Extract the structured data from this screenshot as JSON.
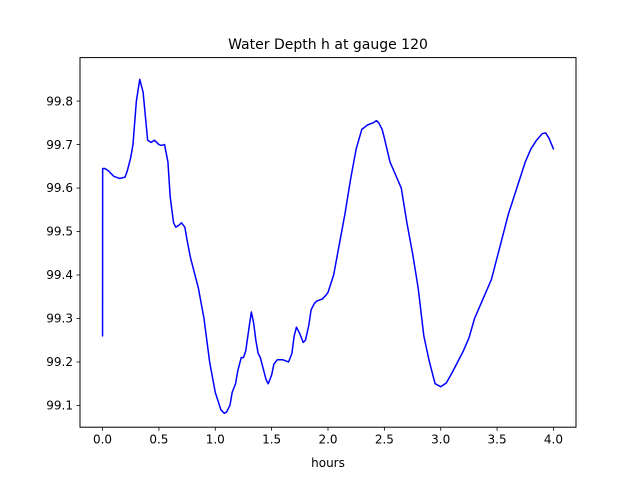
{
  "chart_data": {
    "type": "line",
    "title": "Water Depth h at gauge 120",
    "xlabel": "hours",
    "ylabel": "",
    "xlim": [
      -0.2,
      4.2
    ],
    "ylim": [
      99.05,
      99.9
    ],
    "x_ticks": [
      0.0,
      0.5,
      1.0,
      1.5,
      2.0,
      2.5,
      3.0,
      3.5,
      4.0
    ],
    "x_tick_labels": [
      "0.0",
      "0.5",
      "1.0",
      "1.5",
      "2.0",
      "2.5",
      "3.0",
      "3.5",
      "4.0"
    ],
    "y_ticks": [
      99.1,
      99.2,
      99.3,
      99.4,
      99.5,
      99.6,
      99.7,
      99.8
    ],
    "y_tick_labels": [
      "99.1",
      "99.2",
      "99.3",
      "99.4",
      "99.5",
      "99.6",
      "99.7",
      "99.8"
    ],
    "grid": false,
    "series": [
      {
        "color": "#0000ff",
        "x": [
          0.0,
          0.001,
          0.02,
          0.05,
          0.1,
          0.15,
          0.2,
          0.22,
          0.25,
          0.27,
          0.3,
          0.33,
          0.36,
          0.4,
          0.43,
          0.46,
          0.5,
          0.52,
          0.55,
          0.58,
          0.6,
          0.63,
          0.65,
          0.68,
          0.7,
          0.73,
          0.75,
          0.78,
          0.8,
          0.85,
          0.9,
          0.95,
          1.0,
          1.05,
          1.08,
          1.1,
          1.13,
          1.15,
          1.18,
          1.2,
          1.23,
          1.25,
          1.27,
          1.3,
          1.32,
          1.34,
          1.36,
          1.38,
          1.4,
          1.43,
          1.45,
          1.47,
          1.5,
          1.52,
          1.55,
          1.6,
          1.65,
          1.68,
          1.7,
          1.72,
          1.75,
          1.78,
          1.8,
          1.83,
          1.85,
          1.88,
          1.9,
          1.93,
          1.95,
          1.98,
          2.0,
          2.05,
          2.1,
          2.15,
          2.2,
          2.25,
          2.3,
          2.35,
          2.4,
          2.43,
          2.45,
          2.48,
          2.5,
          2.55,
          2.6,
          2.65,
          2.7,
          2.75,
          2.8,
          2.85,
          2.9,
          2.95,
          3.0,
          3.05,
          3.1,
          3.15,
          3.2,
          3.25,
          3.3,
          3.35,
          3.4,
          3.45,
          3.5,
          3.55,
          3.6,
          3.65,
          3.7,
          3.75,
          3.8,
          3.85,
          3.9,
          3.93,
          3.96,
          4.0
        ],
        "y": [
          99.26,
          99.645,
          99.645,
          99.64,
          99.627,
          99.622,
          99.625,
          99.64,
          99.67,
          99.7,
          99.8,
          99.85,
          99.82,
          99.71,
          99.705,
          99.71,
          99.7,
          99.698,
          99.7,
          99.66,
          99.58,
          99.52,
          99.51,
          99.515,
          99.52,
          99.51,
          99.48,
          99.44,
          99.42,
          99.37,
          99.3,
          99.2,
          99.13,
          99.09,
          99.082,
          99.085,
          99.1,
          99.13,
          99.15,
          99.18,
          99.21,
          99.21,
          99.225,
          99.28,
          99.315,
          99.29,
          99.25,
          99.22,
          99.21,
          99.18,
          99.16,
          99.15,
          99.17,
          99.195,
          99.205,
          99.205,
          99.2,
          99.22,
          99.26,
          99.28,
          99.265,
          99.245,
          99.25,
          99.285,
          99.32,
          99.335,
          99.34,
          99.343,
          99.345,
          99.353,
          99.36,
          99.4,
          99.47,
          99.54,
          99.62,
          99.69,
          99.735,
          99.745,
          99.75,
          99.755,
          99.75,
          99.735,
          99.715,
          99.66,
          99.63,
          99.6,
          99.52,
          99.45,
          99.37,
          99.26,
          99.2,
          99.15,
          99.143,
          99.152,
          99.175,
          99.2,
          99.225,
          99.255,
          99.3,
          99.33,
          99.36,
          99.39,
          99.44,
          99.49,
          99.54,
          99.58,
          99.62,
          99.66,
          99.69,
          99.71,
          99.725,
          99.727,
          99.715,
          99.69
        ]
      }
    ]
  }
}
